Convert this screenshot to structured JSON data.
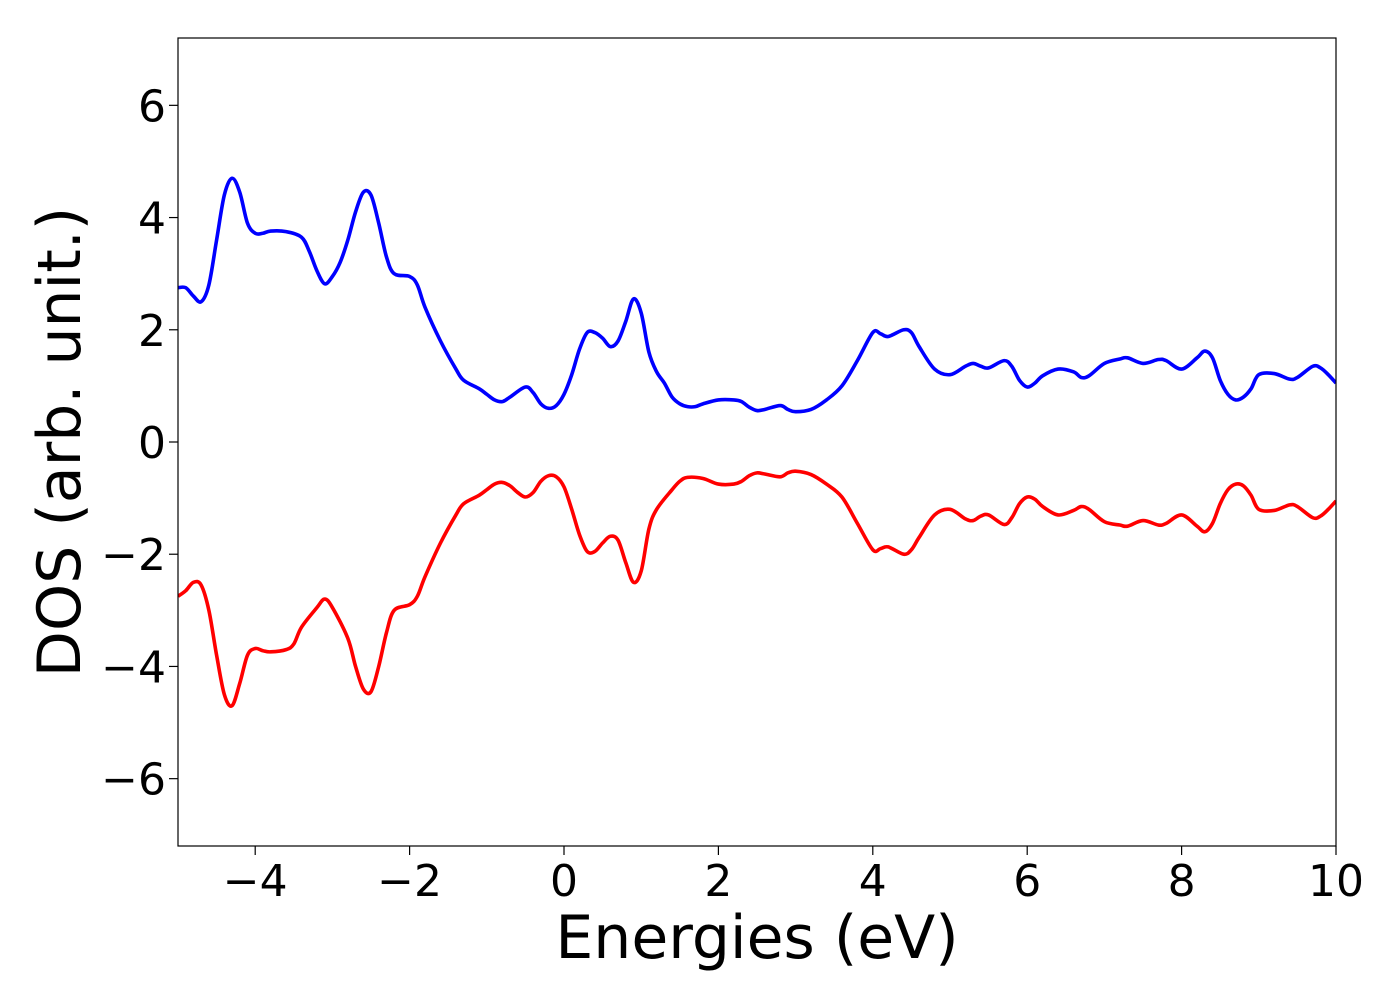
{
  "chart_data": {
    "type": "line",
    "title": "",
    "xlabel": "Energies (eV)",
    "ylabel": "DOS (arb. unit.)",
    "xlim": [
      -5,
      10
    ],
    "ylim": [
      -7.2,
      7.2
    ],
    "grid": false,
    "x_ticks": [
      -4,
      -2,
      0,
      2,
      4,
      6,
      8,
      10
    ],
    "x_tick_labels": [
      "−4",
      "−2",
      "0",
      "2",
      "4",
      "6",
      "8",
      "10"
    ],
    "y_ticks": [
      -6,
      -4,
      -2,
      0,
      2,
      4,
      6
    ],
    "y_tick_labels": [
      "−6",
      "−4",
      "−2",
      "0",
      "2",
      "4",
      "6"
    ],
    "series": [
      {
        "color": "#0000ff",
        "points": [
          [
            -5.0,
            2.75
          ],
          [
            -4.9,
            2.75
          ],
          [
            -4.8,
            2.6
          ],
          [
            -4.7,
            2.5
          ],
          [
            -4.6,
            2.8
          ],
          [
            -4.5,
            3.6
          ],
          [
            -4.4,
            4.4
          ],
          [
            -4.3,
            4.7
          ],
          [
            -4.2,
            4.45
          ],
          [
            -4.1,
            3.9
          ],
          [
            -4.0,
            3.72
          ],
          [
            -3.9,
            3.72
          ],
          [
            -3.8,
            3.76
          ],
          [
            -3.6,
            3.75
          ],
          [
            -3.4,
            3.65
          ],
          [
            -3.3,
            3.4
          ],
          [
            -3.2,
            3.05
          ],
          [
            -3.1,
            2.82
          ],
          [
            -3.0,
            2.95
          ],
          [
            -2.9,
            3.2
          ],
          [
            -2.8,
            3.6
          ],
          [
            -2.7,
            4.1
          ],
          [
            -2.6,
            4.45
          ],
          [
            -2.5,
            4.4
          ],
          [
            -2.4,
            3.9
          ],
          [
            -2.3,
            3.3
          ],
          [
            -2.2,
            3.0
          ],
          [
            -2.0,
            2.95
          ],
          [
            -1.9,
            2.8
          ],
          [
            -1.8,
            2.4
          ],
          [
            -1.6,
            1.8
          ],
          [
            -1.4,
            1.3
          ],
          [
            -1.3,
            1.1
          ],
          [
            -1.1,
            0.95
          ],
          [
            -1.0,
            0.85
          ],
          [
            -0.9,
            0.75
          ],
          [
            -0.8,
            0.72
          ],
          [
            -0.7,
            0.8
          ],
          [
            -0.5,
            0.98
          ],
          [
            -0.4,
            0.88
          ],
          [
            -0.3,
            0.68
          ],
          [
            -0.2,
            0.6
          ],
          [
            -0.1,
            0.65
          ],
          [
            0.0,
            0.85
          ],
          [
            0.1,
            1.2
          ],
          [
            0.2,
            1.65
          ],
          [
            0.3,
            1.95
          ],
          [
            0.4,
            1.95
          ],
          [
            0.5,
            1.85
          ],
          [
            0.6,
            1.7
          ],
          [
            0.7,
            1.8
          ],
          [
            0.8,
            2.15
          ],
          [
            0.9,
            2.55
          ],
          [
            1.0,
            2.3
          ],
          [
            1.1,
            1.6
          ],
          [
            1.2,
            1.25
          ],
          [
            1.3,
            1.05
          ],
          [
            1.4,
            0.8
          ],
          [
            1.5,
            0.68
          ],
          [
            1.6,
            0.63
          ],
          [
            1.7,
            0.63
          ],
          [
            1.8,
            0.68
          ],
          [
            2.0,
            0.75
          ],
          [
            2.2,
            0.75
          ],
          [
            2.3,
            0.72
          ],
          [
            2.4,
            0.62
          ],
          [
            2.5,
            0.56
          ],
          [
            2.6,
            0.58
          ],
          [
            2.8,
            0.65
          ],
          [
            2.9,
            0.58
          ],
          [
            3.0,
            0.54
          ],
          [
            3.2,
            0.58
          ],
          [
            3.4,
            0.75
          ],
          [
            3.6,
            1.0
          ],
          [
            3.8,
            1.45
          ],
          [
            4.0,
            1.95
          ],
          [
            4.1,
            1.93
          ],
          [
            4.2,
            1.88
          ],
          [
            4.4,
            2.0
          ],
          [
            4.5,
            1.95
          ],
          [
            4.6,
            1.7
          ],
          [
            4.8,
            1.3
          ],
          [
            5.0,
            1.2
          ],
          [
            5.2,
            1.35
          ],
          [
            5.3,
            1.4
          ],
          [
            5.4,
            1.35
          ],
          [
            5.5,
            1.32
          ],
          [
            5.7,
            1.45
          ],
          [
            5.8,
            1.35
          ],
          [
            5.9,
            1.1
          ],
          [
            6.0,
            0.98
          ],
          [
            6.1,
            1.05
          ],
          [
            6.2,
            1.18
          ],
          [
            6.4,
            1.3
          ],
          [
            6.6,
            1.25
          ],
          [
            6.7,
            1.15
          ],
          [
            6.8,
            1.18
          ],
          [
            7.0,
            1.4
          ],
          [
            7.2,
            1.48
          ],
          [
            7.3,
            1.5
          ],
          [
            7.5,
            1.4
          ],
          [
            7.7,
            1.47
          ],
          [
            7.8,
            1.45
          ],
          [
            8.0,
            1.3
          ],
          [
            8.2,
            1.5
          ],
          [
            8.3,
            1.62
          ],
          [
            8.4,
            1.5
          ],
          [
            8.5,
            1.1
          ],
          [
            8.6,
            0.85
          ],
          [
            8.7,
            0.75
          ],
          [
            8.8,
            0.8
          ],
          [
            8.9,
            0.95
          ],
          [
            9.0,
            1.2
          ],
          [
            9.2,
            1.22
          ],
          [
            9.4,
            1.12
          ],
          [
            9.5,
            1.15
          ],
          [
            9.7,
            1.35
          ],
          [
            9.8,
            1.32
          ],
          [
            9.9,
            1.2
          ],
          [
            10.0,
            1.05
          ]
        ]
      },
      {
        "color": "#ff0000",
        "points": [
          [
            -5.0,
            -2.75
          ],
          [
            -4.9,
            -2.65
          ],
          [
            -4.8,
            -2.5
          ],
          [
            -4.7,
            -2.55
          ],
          [
            -4.6,
            -3.0
          ],
          [
            -4.5,
            -3.8
          ],
          [
            -4.4,
            -4.5
          ],
          [
            -4.3,
            -4.7
          ],
          [
            -4.2,
            -4.3
          ],
          [
            -4.1,
            -3.8
          ],
          [
            -4.0,
            -3.68
          ],
          [
            -3.9,
            -3.72
          ],
          [
            -3.8,
            -3.74
          ],
          [
            -3.6,
            -3.7
          ],
          [
            -3.5,
            -3.6
          ],
          [
            -3.4,
            -3.3
          ],
          [
            -3.2,
            -2.95
          ],
          [
            -3.1,
            -2.8
          ],
          [
            -3.0,
            -2.95
          ],
          [
            -2.8,
            -3.5
          ],
          [
            -2.7,
            -4.0
          ],
          [
            -2.6,
            -4.4
          ],
          [
            -2.5,
            -4.45
          ],
          [
            -2.4,
            -4.0
          ],
          [
            -2.3,
            -3.4
          ],
          [
            -2.2,
            -3.0
          ],
          [
            -2.0,
            -2.9
          ],
          [
            -1.9,
            -2.75
          ],
          [
            -1.8,
            -2.4
          ],
          [
            -1.6,
            -1.8
          ],
          [
            -1.4,
            -1.3
          ],
          [
            -1.3,
            -1.1
          ],
          [
            -1.1,
            -0.95
          ],
          [
            -1.0,
            -0.85
          ],
          [
            -0.9,
            -0.75
          ],
          [
            -0.8,
            -0.72
          ],
          [
            -0.7,
            -0.78
          ],
          [
            -0.6,
            -0.9
          ],
          [
            -0.5,
            -0.98
          ],
          [
            -0.4,
            -0.9
          ],
          [
            -0.3,
            -0.7
          ],
          [
            -0.2,
            -0.6
          ],
          [
            -0.1,
            -0.62
          ],
          [
            0.0,
            -0.8
          ],
          [
            0.1,
            -1.2
          ],
          [
            0.2,
            -1.65
          ],
          [
            0.3,
            -1.95
          ],
          [
            0.4,
            -1.95
          ],
          [
            0.5,
            -1.8
          ],
          [
            0.6,
            -1.68
          ],
          [
            0.7,
            -1.75
          ],
          [
            0.8,
            -2.15
          ],
          [
            0.9,
            -2.5
          ],
          [
            1.0,
            -2.3
          ],
          [
            1.1,
            -1.55
          ],
          [
            1.2,
            -1.2
          ],
          [
            1.4,
            -0.85
          ],
          [
            1.5,
            -0.7
          ],
          [
            1.6,
            -0.63
          ],
          [
            1.8,
            -0.65
          ],
          [
            2.0,
            -0.75
          ],
          [
            2.2,
            -0.75
          ],
          [
            2.3,
            -0.7
          ],
          [
            2.4,
            -0.6
          ],
          [
            2.5,
            -0.55
          ],
          [
            2.6,
            -0.57
          ],
          [
            2.8,
            -0.62
          ],
          [
            2.9,
            -0.55
          ],
          [
            3.0,
            -0.52
          ],
          [
            3.2,
            -0.58
          ],
          [
            3.4,
            -0.75
          ],
          [
            3.6,
            -0.98
          ],
          [
            3.8,
            -1.45
          ],
          [
            4.0,
            -1.92
          ],
          [
            4.1,
            -1.9
          ],
          [
            4.2,
            -1.87
          ],
          [
            4.4,
            -2.0
          ],
          [
            4.5,
            -1.92
          ],
          [
            4.6,
            -1.7
          ],
          [
            4.8,
            -1.3
          ],
          [
            5.0,
            -1.2
          ],
          [
            5.2,
            -1.37
          ],
          [
            5.3,
            -1.4
          ],
          [
            5.4,
            -1.32
          ],
          [
            5.5,
            -1.3
          ],
          [
            5.7,
            -1.47
          ],
          [
            5.8,
            -1.35
          ],
          [
            5.9,
            -1.1
          ],
          [
            6.0,
            -0.98
          ],
          [
            6.1,
            -1.02
          ],
          [
            6.2,
            -1.15
          ],
          [
            6.4,
            -1.3
          ],
          [
            6.6,
            -1.22
          ],
          [
            6.7,
            -1.15
          ],
          [
            6.8,
            -1.2
          ],
          [
            7.0,
            -1.42
          ],
          [
            7.2,
            -1.48
          ],
          [
            7.3,
            -1.5
          ],
          [
            7.5,
            -1.4
          ],
          [
            7.7,
            -1.48
          ],
          [
            7.8,
            -1.45
          ],
          [
            8.0,
            -1.3
          ],
          [
            8.2,
            -1.5
          ],
          [
            8.3,
            -1.6
          ],
          [
            8.4,
            -1.45
          ],
          [
            8.5,
            -1.1
          ],
          [
            8.6,
            -0.85
          ],
          [
            8.7,
            -0.75
          ],
          [
            8.8,
            -0.78
          ],
          [
            8.9,
            -0.95
          ],
          [
            9.0,
            -1.2
          ],
          [
            9.2,
            -1.22
          ],
          [
            9.4,
            -1.12
          ],
          [
            9.5,
            -1.15
          ],
          [
            9.7,
            -1.35
          ],
          [
            9.8,
            -1.32
          ],
          [
            9.9,
            -1.2
          ],
          [
            10.0,
            -1.05
          ]
        ]
      }
    ]
  }
}
